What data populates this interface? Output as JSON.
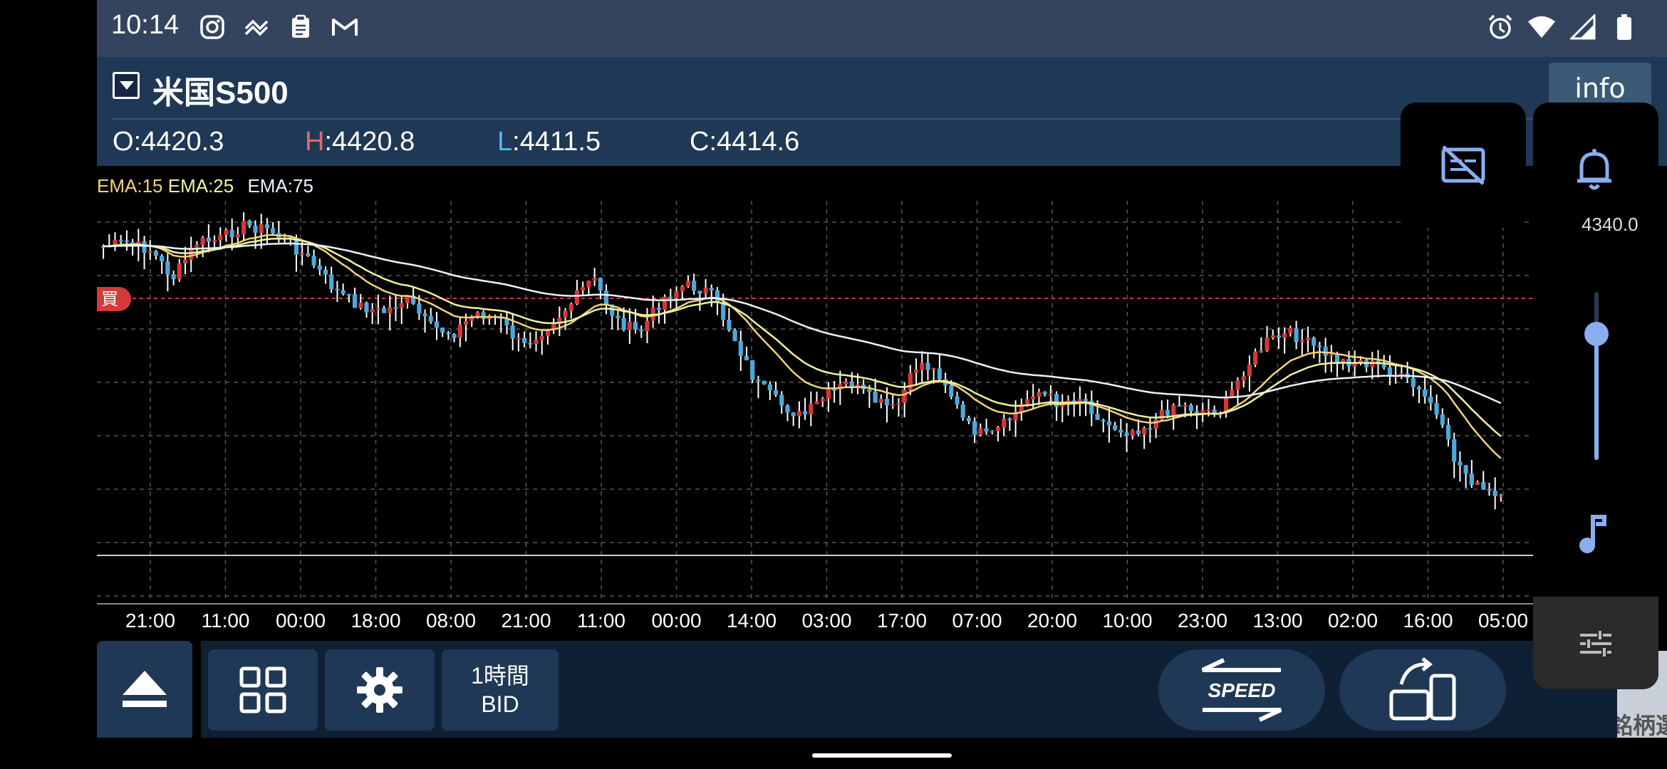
{
  "status_bar": {
    "time": "10:14",
    "left_icons": [
      "instagram-icon",
      "signal-app-icon",
      "clipboard-icon",
      "gmail-icon"
    ],
    "right_icons": [
      "alarm-icon",
      "wifi-icon",
      "cell-signal-icon",
      "battery-icon"
    ]
  },
  "header": {
    "symbol": "米国S500",
    "info_label": "info",
    "ohlc": {
      "o_label": "O",
      "o_value": "4420.3",
      "h_label": "H",
      "h_value": "4420.8",
      "l_label": "L",
      "l_value": "4411.5",
      "c_label": "C",
      "c_value": "4414.6"
    }
  },
  "legend": {
    "ema15": "EMA:15",
    "ema25": "EMA:25",
    "ema75": "EMA:75"
  },
  "chart_data": {
    "type": "candlestick",
    "buy_tag": "買",
    "y_axis_visible_label": "4340.0",
    "x_tick_labels": [
      "21:00",
      "11:00",
      "00:00",
      "18:00",
      "08:00",
      "21:00",
      "11:00",
      "00:00",
      "14:00",
      "03:00",
      "17:00",
      "07:00",
      "20:00",
      "10:00",
      "23:00",
      "13:00",
      "02:00",
      "16:00",
      "05:00"
    ],
    "close_path": [
      0.11,
      0.1,
      0.12,
      0.2,
      0.1,
      0.09,
      0.05,
      0.06,
      0.1,
      0.16,
      0.24,
      0.28,
      0.3,
      0.26,
      0.34,
      0.36,
      0.3,
      0.32,
      0.4,
      0.34,
      0.28,
      0.2,
      0.32,
      0.36,
      0.26,
      0.22,
      0.24,
      0.36,
      0.5,
      0.56,
      0.6,
      0.54,
      0.5,
      0.55,
      0.58,
      0.44,
      0.48,
      0.62,
      0.66,
      0.6,
      0.52,
      0.56,
      0.54,
      0.62,
      0.64,
      0.62,
      0.56,
      0.58,
      0.58,
      0.46,
      0.38,
      0.36,
      0.4,
      0.44,
      0.44,
      0.46,
      0.5,
      0.56,
      0.72,
      0.8,
      0.84
    ],
    "colors": {
      "up": "#d93535",
      "down": "#4ba8dc",
      "ema15": "#f3d27c",
      "ema25": "#eff2a0",
      "ema75": "#e8f5ff"
    }
  },
  "toolbar": {
    "timeframe": "1時間",
    "price_type": "BID",
    "speed_label": "SPEED",
    "select_label": "銘柄選択"
  },
  "side_panel": {
    "icons": [
      "captions-off-icon",
      "bell-icon",
      "music-note-icon",
      "tune-icon"
    ],
    "volume_level": 0.75
  }
}
